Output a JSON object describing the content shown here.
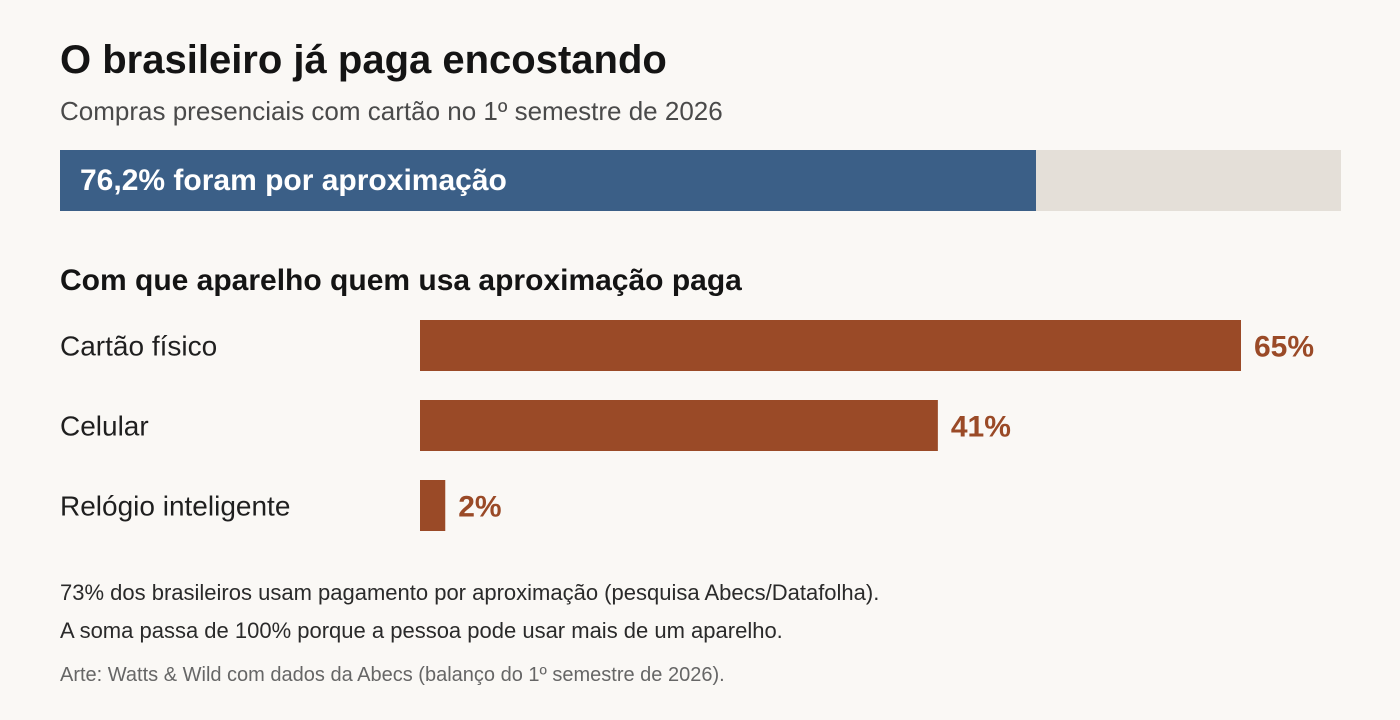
{
  "header": {
    "title": "O brasileiro já paga encostando",
    "subtitle": "Compras presenciais com cartão no 1º semestre de 2026"
  },
  "share": {
    "label": "76,2% foram por aproximação",
    "value": 76.2,
    "max": 100,
    "fill_color": "#3b5f87",
    "track_color": "#e4dfd8"
  },
  "devices": {
    "title": "Com que aparelho quem usa aproximação paga"
  },
  "chart_data": {
    "type": "bar",
    "orientation": "horizontal",
    "categories": [
      "Cartão físico",
      "Celular",
      "Relógio inteligente"
    ],
    "values": [
      65,
      41,
      2
    ],
    "value_labels": [
      "65%",
      "41%",
      "2%"
    ],
    "xlim": [
      0,
      65
    ],
    "bar_color": "#9a4a27",
    "grid": false
  },
  "notes": {
    "line1": "73% dos brasileiros usam pagamento por aproximação (pesquisa Abecs/Datafolha).",
    "line2": "A soma passa de 100% porque a pessoa pode usar mais de um aparelho.",
    "credit": "Arte: Watts & Wild com dados da Abecs (balanço do 1º semestre de 2026)."
  }
}
